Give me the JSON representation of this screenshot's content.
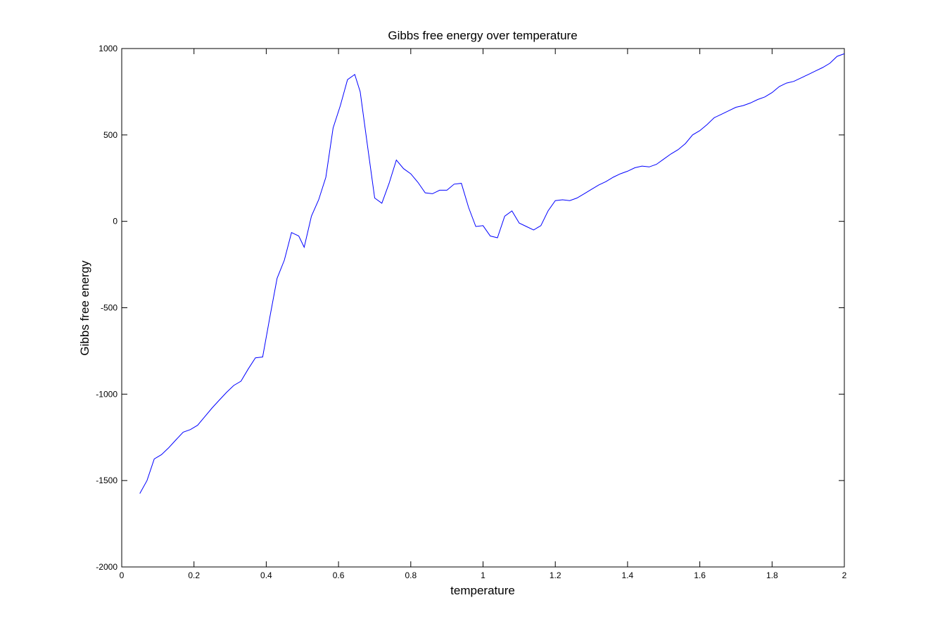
{
  "chart_data": {
    "type": "line",
    "title": "Gibbs free energy over temperature",
    "xlabel": "temperature",
    "ylabel": "Gibbs free energy",
    "xlim": [
      0,
      2
    ],
    "ylim": [
      -2000,
      1000
    ],
    "xticks": [
      0,
      0.2,
      0.4,
      0.6,
      0.8,
      1,
      1.2,
      1.4,
      1.6,
      1.8,
      2
    ],
    "xtick_labels": [
      "0",
      "0.2",
      "0.4",
      "0.6",
      "0.8",
      "1",
      "1.2",
      "1.4",
      "1.6",
      "1.8",
      "2"
    ],
    "yticks": [
      -2000,
      -1500,
      -1000,
      -500,
      0,
      500,
      1000
    ],
    "ytick_labels": [
      "-2000",
      "-1500",
      "-1000",
      "-500",
      "0",
      "500",
      "1000"
    ],
    "grid": false,
    "line_color": "#0000ff",
    "series": [
      {
        "x": [
          0.05,
          0.07,
          0.09,
          0.11,
          0.13,
          0.15,
          0.17,
          0.19,
          0.21,
          0.23,
          0.25,
          0.27,
          0.29,
          0.31,
          0.33,
          0.35,
          0.37,
          0.39,
          0.41,
          0.43,
          0.45,
          0.47,
          0.49,
          0.505,
          0.525,
          0.545,
          0.565,
          0.585,
          0.605,
          0.625,
          0.645,
          0.66,
          0.68,
          0.7,
          0.72,
          0.74,
          0.76,
          0.78,
          0.8,
          0.82,
          0.84,
          0.86,
          0.88,
          0.9,
          0.92,
          0.94,
          0.96,
          0.98,
          1.0,
          1.02,
          1.04,
          1.06,
          1.08,
          1.1,
          1.12,
          1.14,
          1.16,
          1.18,
          1.2,
          1.22,
          1.24,
          1.26,
          1.28,
          1.3,
          1.32,
          1.34,
          1.36,
          1.38,
          1.4,
          1.42,
          1.44,
          1.46,
          1.48,
          1.5,
          1.52,
          1.54,
          1.56,
          1.58,
          1.6,
          1.62,
          1.64,
          1.66,
          1.68,
          1.7,
          1.72,
          1.74,
          1.76,
          1.78,
          1.8,
          1.82,
          1.84,
          1.86,
          1.88,
          1.9,
          1.92,
          1.94,
          1.96,
          1.98,
          2.0
        ],
        "y": [
          -1575,
          -1500,
          -1375,
          -1350,
          -1310,
          -1265,
          -1220,
          -1205,
          -1180,
          -1130,
          -1080,
          -1035,
          -990,
          -950,
          -925,
          -855,
          -790,
          -785,
          -555,
          -330,
          -225,
          -65,
          -85,
          -150,
          30,
          125,
          255,
          540,
          670,
          820,
          850,
          750,
          440,
          135,
          105,
          220,
          355,
          305,
          275,
          225,
          165,
          160,
          180,
          180,
          215,
          220,
          80,
          -30,
          -25,
          -85,
          -95,
          30,
          60,
          -10,
          -30,
          -50,
          -25,
          60,
          120,
          125,
          120,
          135,
          160,
          185,
          210,
          230,
          255,
          275,
          290,
          310,
          320,
          315,
          330,
          360,
          390,
          415,
          450,
          500,
          525,
          560,
          600,
          620,
          640,
          660,
          670,
          685,
          705,
          720,
          745,
          780,
          800,
          810,
          830,
          850,
          870,
          890,
          915,
          955,
          970
        ]
      }
    ]
  }
}
